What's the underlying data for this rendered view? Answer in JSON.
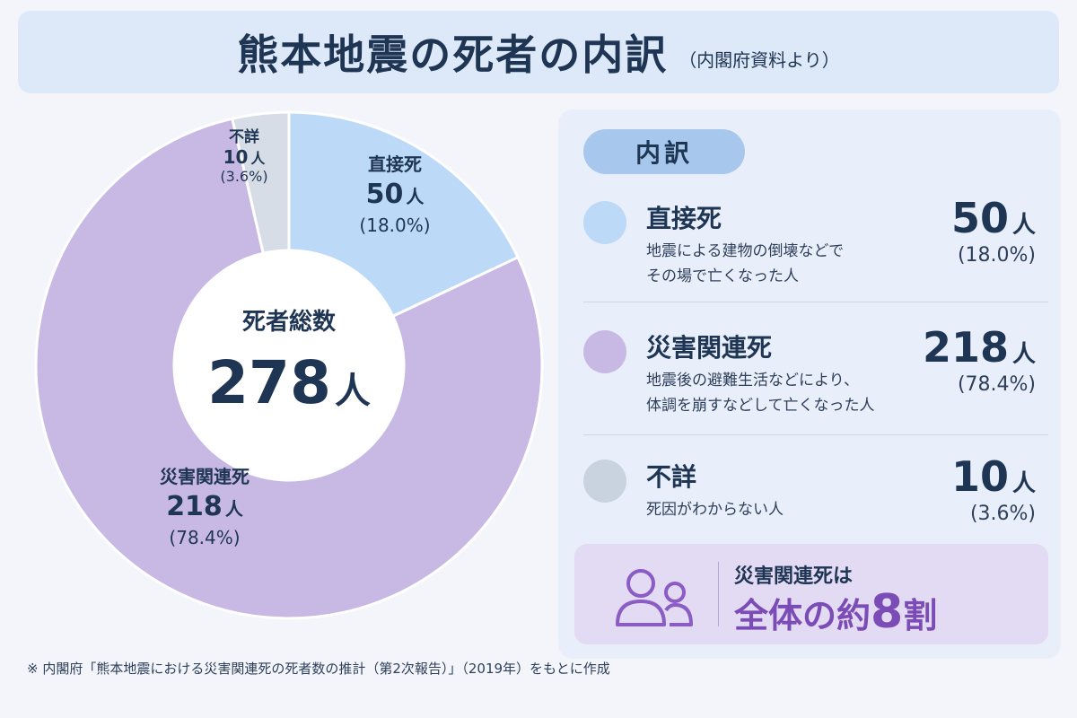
{
  "header": {
    "title": "熊本地震の死者の内訳",
    "subtitle": "（内閣府資料より）"
  },
  "chart_data": {
    "type": "pie",
    "center_label": "死者総数",
    "center_value": "278",
    "center_unit": "人",
    "slices": [
      {
        "label": "直接死",
        "value": 50,
        "unit": "人",
        "pct_text": "(18.0%)",
        "color": "#bcd9f7"
      },
      {
        "label": "災害関連死",
        "value": 218,
        "unit": "人",
        "pct_text": "(78.4%)",
        "color": "#c8b8e4"
      },
      {
        "label": "不詳",
        "value": 10,
        "unit": "人",
        "pct_text": "(3.6%)",
        "color": "#d7dde7"
      }
    ]
  },
  "panel": {
    "heading": "内訳",
    "items": [
      {
        "name": "直接死",
        "desc1": "地震による建物の倒壊などで",
        "desc2": "その場で亡くなった人",
        "num": "50",
        "unit": "人",
        "pct": "(18.0%)",
        "color": "#bcd9f7"
      },
      {
        "name": "災害関連死",
        "desc1": "地震後の避難生活などにより、",
        "desc2": "体調を崩すなどして亡くなった人",
        "num": "218",
        "unit": "人",
        "pct": "(78.4%)",
        "color": "#c8b8e4"
      },
      {
        "name": "不詳",
        "desc1": "死因がわからない人",
        "desc2": "",
        "num": "10",
        "unit": "人",
        "pct": "(3.6%)",
        "color": "#c9d2df"
      }
    ],
    "callout": {
      "line1": "災害関連死は",
      "line2a": "全体の約",
      "line2b": "8",
      "line2c": "割",
      "icon": "people-icon"
    }
  },
  "footnote": "※ 内閣府「熊本地震における災害関連死の死者数の推計（第2次報告）」（2019年）をもとに作成"
}
